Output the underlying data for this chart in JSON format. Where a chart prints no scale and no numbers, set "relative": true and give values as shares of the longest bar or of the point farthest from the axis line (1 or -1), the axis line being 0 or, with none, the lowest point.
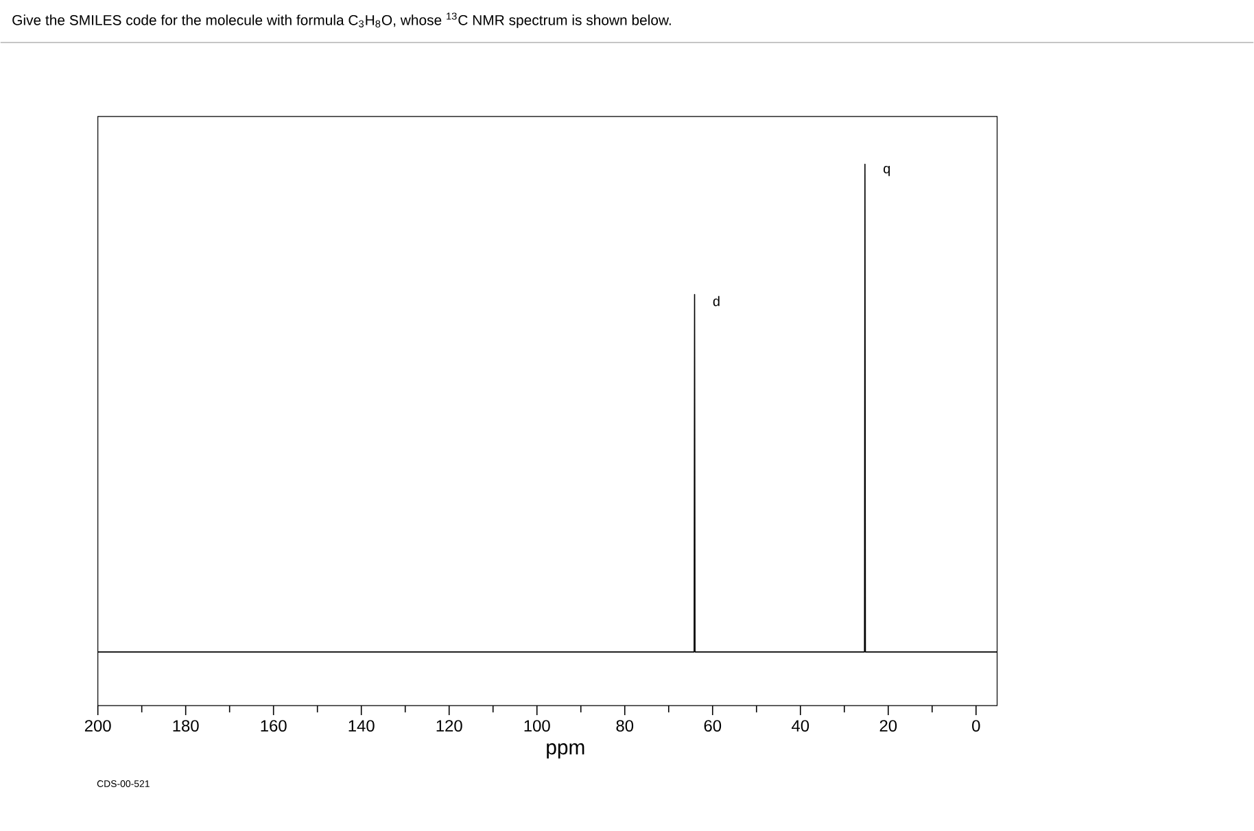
{
  "chart_data": {
    "type": "line",
    "title": "Give the SMILES code for the molecule with formula C$_{3}$H$_{8}$O, whose $^{13}$C NMR spectrum is shown below.",
    "xlabel": "ppm",
    "relative": true,
    "xlim": [
      200,
      -4.8
    ],
    "xticks": [
      200,
      180,
      160,
      140,
      120,
      100,
      80,
      60,
      40,
      20,
      0
    ],
    "series": [
      {
        "color": "#000000",
        "x": [
          200,
          64.2,
          64.1,
          64.0,
          25.4,
          25.3,
          25.2,
          -4.8
        ],
        "values": [
          0,
          0,
          0.733,
          0,
          0,
          1,
          0,
          0
        ]
      }
    ],
    "annotations": [
      {
        "text": "d",
        "x": 64.1,
        "y": 0.733
      },
      {
        "text": "q",
        "x": 25.3,
        "y": 1
      },
      "CDS-00-521"
    ]
  }
}
